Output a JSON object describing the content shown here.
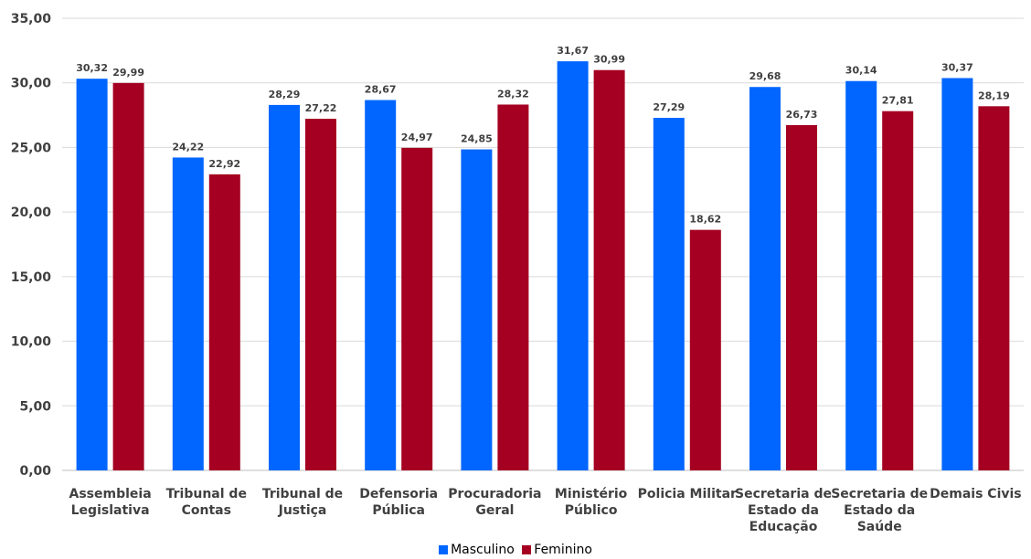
{
  "chart_data": {
    "type": "bar",
    "title": "",
    "xlabel": "",
    "ylabel": "",
    "ylim": [
      0,
      35
    ],
    "yticks": [
      "0,00",
      "5,00",
      "10,00",
      "15,00",
      "20,00",
      "25,00",
      "30,00",
      "35,00"
    ],
    "grid": true,
    "legend_position": "bottom",
    "categories": [
      [
        "Assembleia",
        "Legislativa"
      ],
      [
        "Tribunal de",
        "Contas"
      ],
      [
        "Tribunal de",
        "Justiça"
      ],
      [
        "Defensoria",
        "Pública"
      ],
      [
        "Procuradoria",
        "Geral"
      ],
      [
        "Ministério",
        "Público"
      ],
      [
        "Policia Militar"
      ],
      [
        "Secretaria de",
        "Estado da",
        "Educação"
      ],
      [
        "Secretaria de",
        "Estado da",
        "Saúde"
      ],
      [
        "Demais Civis"
      ]
    ],
    "series": [
      {
        "name": "Masculino",
        "color": "#0066FF",
        "values": [
          30.32,
          24.22,
          28.29,
          28.67,
          24.85,
          31.67,
          27.29,
          29.68,
          30.14,
          30.37
        ],
        "labels": [
          "30,32",
          "24,22",
          "28,29",
          "28,67",
          "24,85",
          "31,67",
          "27,29",
          "29,68",
          "30,14",
          "30,37"
        ]
      },
      {
        "name": "Feminino",
        "color": "#A50021",
        "values": [
          29.99,
          22.92,
          27.22,
          24.97,
          28.32,
          30.99,
          18.62,
          26.73,
          27.81,
          28.19
        ],
        "labels": [
          "29,99",
          "22,92",
          "27,22",
          "24,97",
          "28,32",
          "30,99",
          "18,62",
          "26,73",
          "27,81",
          "28,19"
        ]
      }
    ]
  }
}
